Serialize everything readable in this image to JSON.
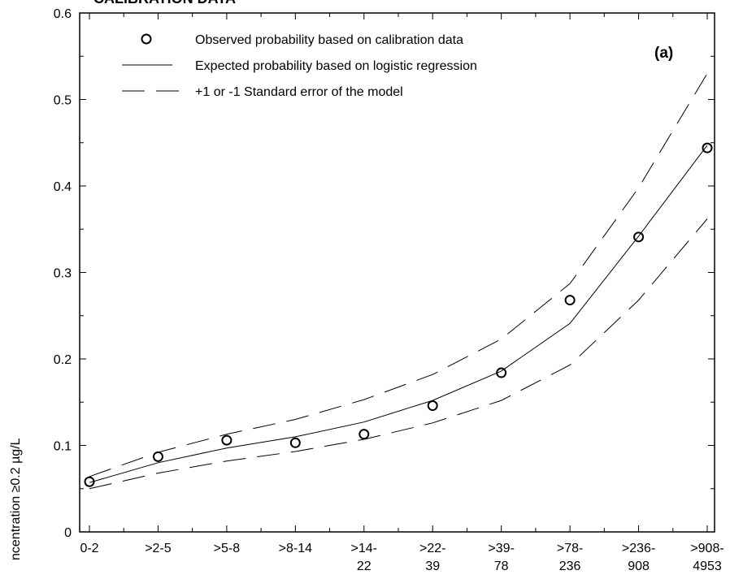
{
  "chart_data": {
    "type": "line",
    "title": "CALIBRATION DATA",
    "panel_label": "(a)",
    "ylabel": "ncentration ≥0.2 µg/L",
    "xlabel": "",
    "ylim": [
      0,
      0.6
    ],
    "yticks": [
      "0",
      "0.1",
      "0.2",
      "0.3",
      "0.4",
      "0.5",
      "0.6"
    ],
    "categories": [
      [
        "0-2"
      ],
      [
        ">2-5"
      ],
      [
        ">5-8"
      ],
      [
        ">8-14"
      ],
      [
        ">14-",
        "22"
      ],
      [
        ">22-",
        "39"
      ],
      [
        ">39-",
        "78"
      ],
      [
        ">78-",
        "236"
      ],
      [
        ">236-",
        "908"
      ],
      [
        ">908-",
        "4953"
      ]
    ],
    "series": [
      {
        "name": "Observed probability based on calibration data",
        "style": "circle",
        "values": [
          0.058,
          0.087,
          0.106,
          0.103,
          0.113,
          0.146,
          0.184,
          0.268,
          0.341,
          0.444
        ]
      },
      {
        "name": "Expected probability based on logistic regression",
        "style": "solid",
        "values": [
          0.057,
          0.08,
          0.097,
          0.11,
          0.127,
          0.152,
          0.186,
          0.241,
          0.342,
          0.447
        ]
      },
      {
        "name": "+1 or -1 Standard error of the model",
        "style": "dashed",
        "values": [
          0.064,
          0.092,
          0.113,
          0.13,
          0.153,
          0.182,
          0.223,
          0.287,
          0.398,
          0.53
        ]
      },
      {
        "name": "",
        "style": "dashed",
        "values": [
          0.05,
          0.068,
          0.082,
          0.093,
          0.107,
          0.126,
          0.152,
          0.193,
          0.268,
          0.362
        ]
      }
    ],
    "grid": false,
    "legend_position": "top-left"
  }
}
